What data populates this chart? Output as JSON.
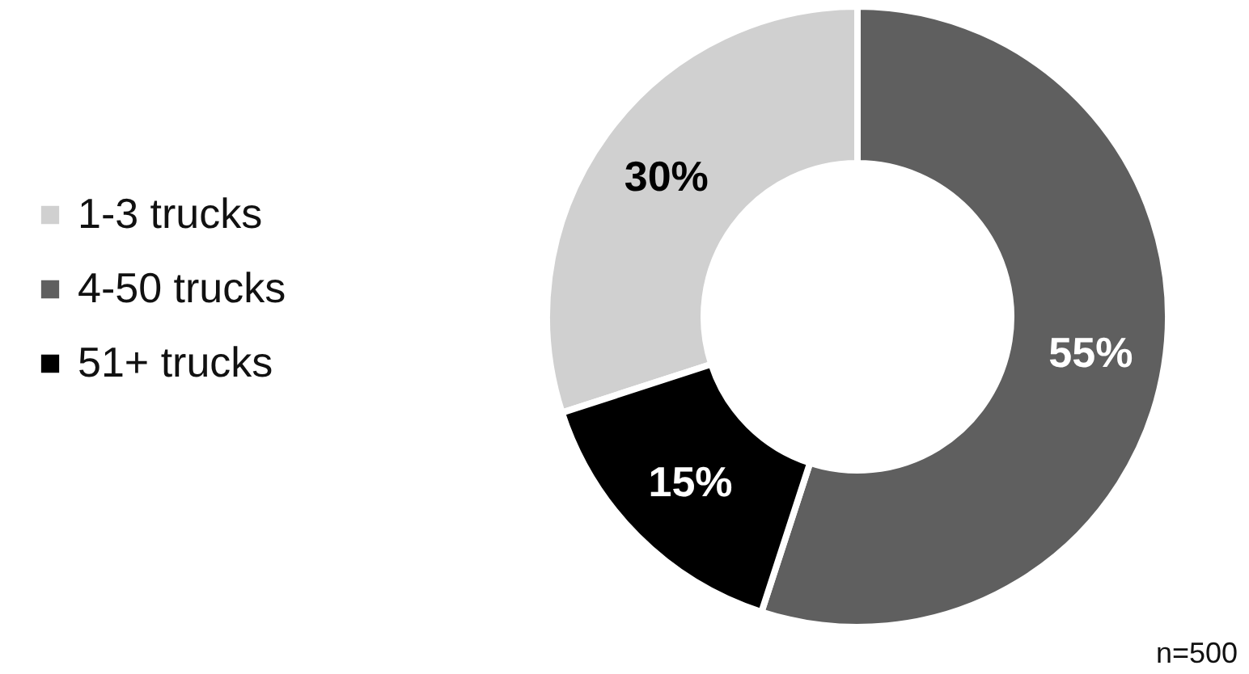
{
  "chart_data": {
    "type": "donut",
    "categories": [
      "1-3 trucks",
      "4-50 trucks",
      "51+ trucks"
    ],
    "values": [
      30,
      55,
      15
    ],
    "colors": [
      "#d0d0d0",
      "#5f5f5f",
      "#000000"
    ],
    "value_labels": [
      "30%",
      "55%",
      "15%"
    ],
    "legend": "left",
    "annotations": [
      "n=500"
    ]
  }
}
